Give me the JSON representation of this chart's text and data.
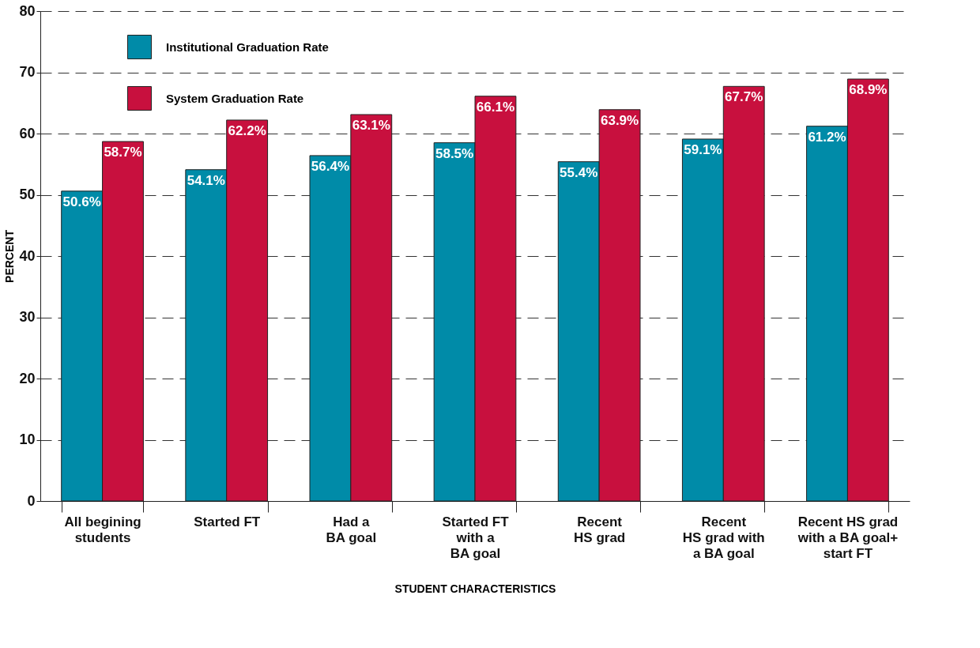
{
  "chart_data": {
    "type": "bar",
    "xlabel": "STUDENT CHARACTERISTICS",
    "ylabel": "PERCENT",
    "categories": [
      "All begining\nstudents",
      "Started FT",
      "Had a\nBA goal",
      "Started FT\nwith a\nBA goal",
      "Recent\nHS grad",
      "Recent\nHS grad with\na BA goal",
      "Recent HS grad\nwith a BA goal+\nstart FT"
    ],
    "series": [
      {
        "name": "Institutional Graduation Rate",
        "color": "#008ba8",
        "values": [
          50.6,
          54.1,
          56.4,
          58.5,
          55.4,
          59.1,
          61.2
        ],
        "value_labels": [
          "50.6%",
          "54.1%",
          "56.4%",
          "58.5%",
          "55.4%",
          "59.1%",
          "61.2%"
        ]
      },
      {
        "name": "System Graduation Rate",
        "color": "#c8103e",
        "values": [
          58.7,
          62.2,
          63.1,
          66.1,
          63.9,
          67.7,
          68.9
        ],
        "value_labels": [
          "58.7%",
          "62.2%",
          "63.1%",
          "66.1%",
          "63.9%",
          "67.7%",
          "68.9%"
        ]
      }
    ],
    "ylim": [
      0,
      80
    ],
    "yticks": [
      0,
      10,
      20,
      30,
      40,
      50,
      60,
      70,
      80
    ],
    "grid": "y",
    "legend": "top left"
  }
}
